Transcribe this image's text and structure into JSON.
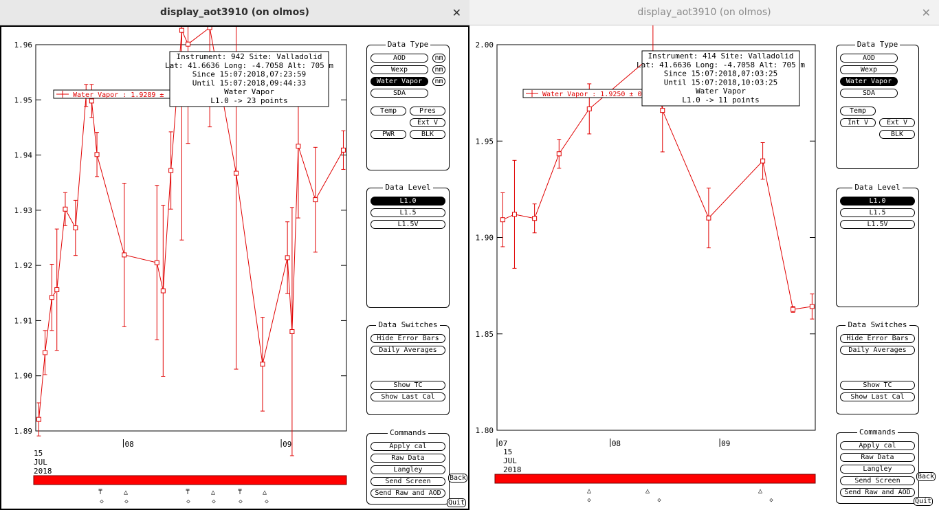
{
  "left": {
    "title": "display_aot3910 (on olmos)",
    "active": true,
    "plot": {
      "ymin": 1.89,
      "ymax": 1.96,
      "y_ticks": [
        "1.96",
        "1.95",
        "1.94",
        "1.93",
        "1.92",
        "1.91",
        "1.90",
        "1.89"
      ],
      "x_ticks": [
        {
          "label": "08",
          "frac": 0.282
        },
        {
          "label": "09",
          "frac": 0.79
        }
      ],
      "date": [
        "15",
        "JUL",
        "2018"
      ],
      "legend": "Water Vapor : 1.9289 ±",
      "info": [
        "Instrument: 942 Site: Valladolid",
        "Lat: 41.6636 Long: -4.7058 Alt: 705 m",
        "Since 15:07:2018,07:23:59",
        "Until 15:07:2018,09:44:33",
        "Water Vapor",
        "L1.0 -> 23 points"
      ],
      "points": [
        [
          0.01,
          1.8921,
          0.003
        ],
        [
          0.03,
          1.9042,
          0.004
        ],
        [
          0.052,
          1.9142,
          0.006
        ],
        [
          0.068,
          1.9156,
          0.011
        ],
        [
          0.095,
          1.9302,
          0.003
        ],
        [
          0.128,
          1.9268,
          0.005
        ],
        [
          0.162,
          1.9508,
          0.002
        ],
        [
          0.18,
          1.9498,
          0.003
        ],
        [
          0.197,
          1.9401,
          0.004
        ],
        [
          0.285,
          1.9219,
          0.013
        ],
        [
          0.39,
          1.9205,
          0.014
        ],
        [
          0.41,
          1.9154,
          0.0155
        ],
        [
          0.435,
          1.9372,
          0.007
        ],
        [
          0.47,
          1.9626,
          0.038
        ],
        [
          0.49,
          1.9601,
          0.018
        ],
        [
          0.56,
          1.9631,
          0.018
        ],
        [
          0.645,
          1.9367,
          0.0355
        ],
        [
          0.73,
          1.9021,
          0.0085
        ],
        [
          0.81,
          1.9214,
          0.0065
        ],
        [
          0.825,
          1.908,
          0.0225
        ],
        [
          0.845,
          1.9416,
          0.013
        ],
        [
          0.9,
          1.9319,
          0.0095
        ],
        [
          0.99,
          1.9409,
          0.0035
        ]
      ],
      "markers": [
        {
          "x": 144,
          "t": "⍑"
        },
        {
          "x": 181,
          "t": "△"
        },
        {
          "x": 271,
          "t": "⍑"
        },
        {
          "x": 308,
          "t": "△"
        },
        {
          "x": 347,
          "t": "⍑"
        },
        {
          "x": 383,
          "t": "△"
        }
      ],
      "markers2": [
        146,
        182,
        272,
        309,
        348,
        386
      ]
    },
    "data_type": {
      "title": "Data Type",
      "aod": "AOD",
      "wexp": "Wexp",
      "water_vapor": "Water Vapor",
      "sda": "SDA",
      "nm": "nm",
      "temp": "Temp",
      "pres": "Pres",
      "ext_v": "Ext V",
      "pwr": "PWR",
      "blk": "BLK"
    },
    "data_level": {
      "title": "Data Level",
      "l10": "L1.0",
      "l15": "L1.5",
      "l15v": "L1.5V"
    },
    "data_switches": {
      "title": "Data Switches",
      "hide": "Hide Error Bars",
      "daily": "Daily Averages",
      "show_tc": "Show TC",
      "show_last": "Show Last Cal"
    },
    "commands": {
      "title": "Commands",
      "apply": "Apply cal",
      "raw": "Raw Data",
      "langley": "Langley",
      "send_screen": "Send Screen",
      "send_raw": "Send Raw and AOD"
    },
    "back": "Back",
    "quit": "Quit"
  },
  "right": {
    "title": "display_aot3910 (on olmos)",
    "active": false,
    "plot": {
      "ymin": 1.8,
      "ymax": 2.0,
      "y_ticks": [
        "2.00",
        "1.95",
        "1.90",
        "1.85",
        "1.80"
      ],
      "x_ticks": [
        {
          "label": "07",
          "frac": 0.0
        },
        {
          "label": "08",
          "frac": 0.356
        },
        {
          "label": "09",
          "frac": 0.7
        }
      ],
      "date": [
        "15",
        "JUL",
        "2018"
      ],
      "legend": "Water Vapor : 1.9250 ± 0",
      "info": [
        "Instrument: 414 Site: Valladolid",
        "Lat: 41.6636 Long: -4.7058 Alt: 705 m",
        "Since 15:07:2018,07:03:25",
        "Until 15:07:2018,10:03:25",
        "Water Vapor",
        "L1.0 -> 11 points"
      ],
      "points": [
        [
          0.018,
          1.9092,
          0.014
        ],
        [
          0.055,
          1.912,
          0.028
        ],
        [
          0.118,
          1.9099,
          0.0075
        ],
        [
          0.195,
          1.9434,
          0.0075
        ],
        [
          0.29,
          1.9667,
          0.013
        ],
        [
          0.49,
          1.9948,
          0.021
        ],
        [
          0.52,
          1.9659,
          0.0215
        ],
        [
          0.665,
          1.9101,
          0.0155
        ],
        [
          0.835,
          1.9397,
          0.0095
        ],
        [
          0.93,
          1.8627,
          0.0015
        ],
        [
          0.99,
          1.8642,
          0.0065
        ]
      ],
      "markers": [
        {
          "x": 174,
          "t": "△"
        },
        {
          "x": 259,
          "t": "△"
        },
        {
          "x": 423,
          "t": "△"
        }
      ],
      "markers2": [
        174,
        276,
        439
      ]
    },
    "data_type": {
      "title": "Data Type",
      "aod": "AOD",
      "wexp": "Wexp",
      "water_vapor": "Water Vapor",
      "sda": "SDA",
      "temp": "Temp",
      "int_v": "Int V",
      "ext_v": "Ext V",
      "blk": "BLK"
    },
    "data_level": {
      "title": "Data Level",
      "l10": "L1.0",
      "l15": "L1.5",
      "l15v": "L1.5V"
    },
    "data_switches": {
      "title": "Data Switches",
      "hide": "Hide Error Bars",
      "daily": "Daily Averages",
      "show_tc": "Show TC",
      "show_last": "Show Last Cal"
    },
    "commands": {
      "title": "Commands",
      "apply": "Apply cal",
      "raw": "Raw Data",
      "langley": "Langley",
      "send_screen": "Send Screen",
      "send_raw": "Send Raw and AOD"
    },
    "back": "Back",
    "quit": "Quit"
  }
}
